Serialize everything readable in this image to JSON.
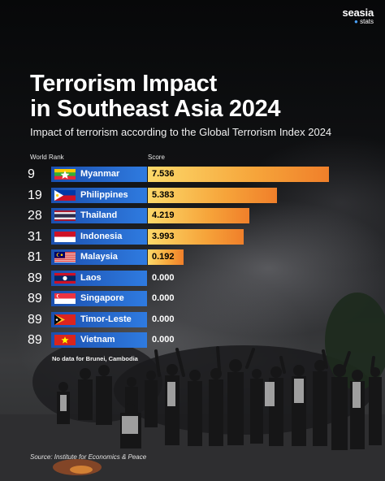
{
  "brand": {
    "name": "seasia",
    "sub": "stats",
    "accent": "#4aa3ff"
  },
  "title_line1": "Terrorism Impact",
  "title_line2": "in Southeast Asia 2024",
  "subtitle": "Impact of terrorism according to the Global Terrorism Index 2024",
  "columns": {
    "rank": "World Rank",
    "score": "Score"
  },
  "note": "No data for Brunei, Cambodia",
  "source": "Source: Institute for Economics & Peace",
  "chart_data": {
    "type": "bar",
    "orientation": "horizontal",
    "categories": [
      "Myanmar",
      "Philippines",
      "Thailand",
      "Indonesia",
      "Malaysia",
      "Laos",
      "Singapore",
      "Timor-Leste",
      "Vietnam"
    ],
    "ranks": [
      "9",
      "19",
      "28",
      "31",
      "81",
      "89",
      "89",
      "89",
      "89"
    ],
    "values": [
      7.536,
      5.383,
      4.219,
      3.993,
      0.192,
      0.0,
      0.0,
      0.0,
      0.0
    ],
    "labels": [
      "7.536",
      "5.383",
      "4.219",
      "3.993",
      "0.192",
      "0.000",
      "0.000",
      "0.000",
      "0.000"
    ],
    "flags": [
      "myanmar-flag",
      "philippines-flag",
      "thailand-flag",
      "indonesia-flag",
      "malaysia-flag",
      "laos-flag",
      "singapore-flag",
      "timor-leste-flag",
      "vietnam-flag"
    ],
    "xlim": [
      0,
      7.536
    ],
    "colors": {
      "country_bar": "#1b4fae",
      "score_start": "#fcd96a",
      "score_end": "#f07f2a"
    }
  }
}
